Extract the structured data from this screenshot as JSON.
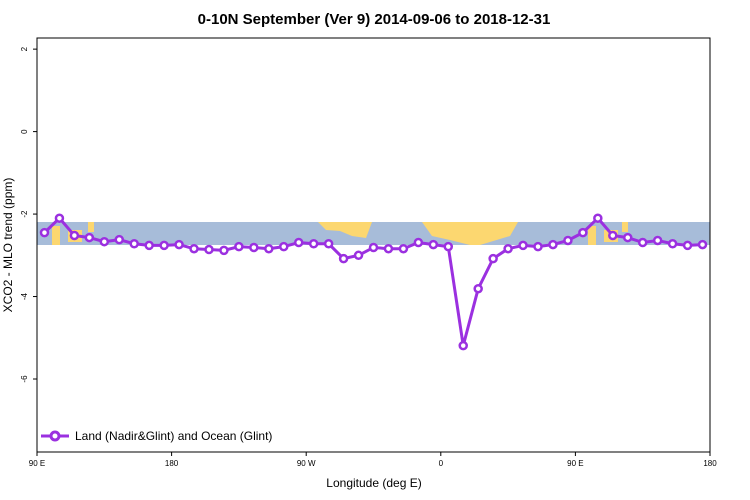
{
  "chart_data": {
    "type": "line",
    "title": "0-10N September (Ver 9)   2014-09-06 to 2018-12-31",
    "x_label": "Longitude (deg E)",
    "y_label": "XCO2 - MLO trend (ppm)",
    "x": [
      95,
      105,
      115,
      125,
      135,
      145,
      155,
      165,
      175,
      185,
      195,
      205,
      215,
      225,
      235,
      245,
      255,
      265,
      275,
      285,
      295,
      305,
      315,
      325,
      335,
      345,
      355,
      365,
      375,
      385,
      395,
      405,
      415,
      425,
      435,
      445,
      455,
      465,
      475,
      485,
      495,
      505,
      515,
      525,
      535
    ],
    "series": [
      {
        "name": "Land (Nadir&Glint) and Ocean (Glint)",
        "color": "#9b30e0",
        "values": [
          -2.45,
          -2.1,
          -2.52,
          -2.57,
          -2.67,
          -2.62,
          -2.72,
          -2.76,
          -2.76,
          -2.74,
          -2.84,
          -2.86,
          -2.88,
          -2.79,
          -2.81,
          -2.84,
          -2.79,
          -2.69,
          -2.72,
          -2.72,
          -3.08,
          -3.0,
          -2.81,
          -2.84,
          -2.84,
          -2.69,
          -2.74,
          -2.79,
          -5.19,
          -3.81,
          -3.08,
          -2.84,
          -2.76,
          -2.79,
          -2.74,
          -2.64,
          -2.45,
          -2.1,
          -2.52,
          -2.57,
          -2.69,
          -2.64,
          -2.72,
          -2.76,
          -2.74
        ]
      }
    ],
    "xlim": [
      90,
      540
    ],
    "xticks": [
      {
        "value": 90,
        "label": "90 E"
      },
      180,
      {
        "value": 270,
        "label": "90 W"
      },
      {
        "value": 360,
        "label": "0"
      },
      {
        "value": 450,
        "label": "90 E"
      },
      {
        "value": 540,
        "label": "180"
      }
    ],
    "ylim": [
      -7.77,
      2.27
    ],
    "yticks": [
      2,
      0,
      -2,
      -4,
      -6
    ],
    "legend": "bottom-left"
  }
}
